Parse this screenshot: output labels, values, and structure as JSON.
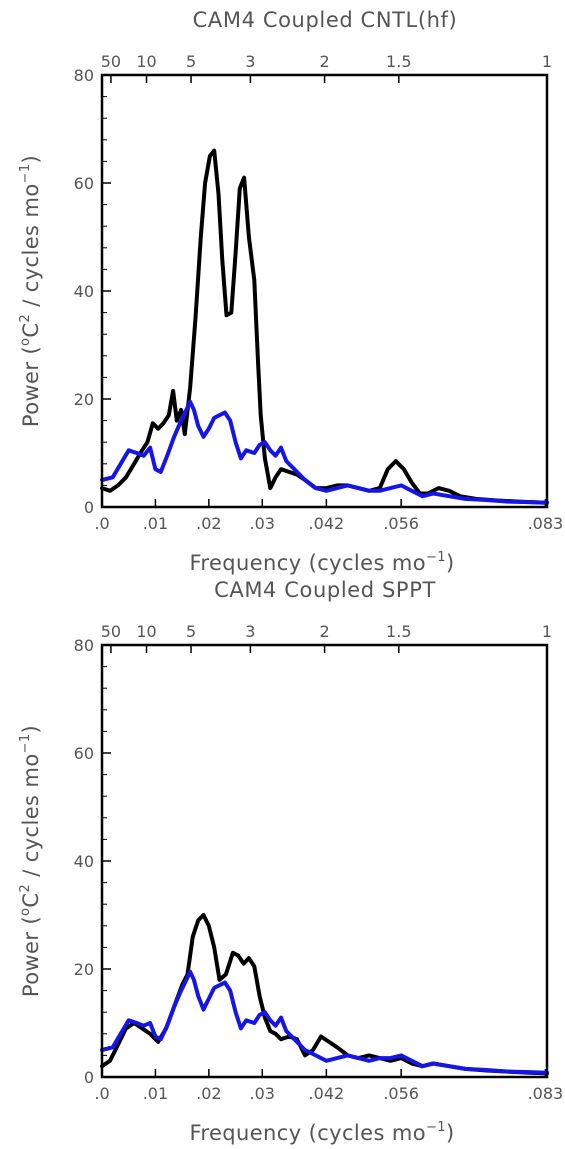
{
  "colors": {
    "cntl": "#000000",
    "stochastic": "#1515e8",
    "frame": "#000000",
    "text": "#555555"
  },
  "panels": [
    {
      "title": "CAM4 Coupled CNTL(hf)",
      "xlabel_main": "Frequency (cycles mo",
      "xlabel_exp": "−1",
      "xlabel_end": ")",
      "ylabel_main": "Power (",
      "ylabel_o": "o",
      "ylabel_c": "C",
      "ylabel_2": "2",
      "ylabel_mid": " / cycles mo",
      "ylabel_exp": "−1",
      "ylabel_end": ")"
    },
    {
      "title": "CAM4 Coupled SPPT",
      "xlabel_main": "Frequency (cycles mo",
      "xlabel_exp": "−1",
      "xlabel_end": ")",
      "ylabel_main": "Power (",
      "ylabel_o": "o",
      "ylabel_c": "C",
      "ylabel_2": "2",
      "ylabel_mid": " / cycles mo",
      "ylabel_exp": "−1",
      "ylabel_end": ")"
    }
  ],
  "chart_data": [
    {
      "type": "line",
      "title": "CAM4 Coupled CNTL(hf)",
      "xlabel": "Frequency (cycles mo−1)",
      "ylabel": "Power (oC2 / cycles mo−1)",
      "xlim": [
        0,
        0.0833
      ],
      "ylim": [
        0,
        80
      ],
      "x_ticks": [
        0,
        0.01,
        0.02,
        0.03,
        0.042,
        0.056,
        0.083
      ],
      "x_tick_labels": [
        ".0",
        ".01",
        ".02",
        ".03",
        ".042",
        ".056",
        ".083"
      ],
      "y_ticks": [
        0,
        20,
        40,
        60,
        80
      ],
      "y_tick_labels": [
        "0",
        "20",
        "40",
        "60",
        "80"
      ],
      "top_axis_label": "",
      "top_ticks": [
        {
          "period": 50,
          "label": "50"
        },
        {
          "period": 10,
          "label": "10"
        },
        {
          "period": 5,
          "label": "5"
        },
        {
          "period": 3,
          "label": "3"
        },
        {
          "period": 2,
          "label": "2"
        },
        {
          "period": 1.5,
          "label": "1.5"
        },
        {
          "period": 1,
          "label": "1"
        }
      ],
      "series": [
        {
          "color": "#000000",
          "points": [
            [
              0,
              3.5
            ],
            [
              0.0015,
              3.0
            ],
            [
              0.003,
              4.0
            ],
            [
              0.0045,
              5.5
            ],
            [
              0.006,
              8.0
            ],
            [
              0.0075,
              10.5
            ],
            [
              0.0085,
              12.0
            ],
            [
              0.0095,
              15.5
            ],
            [
              0.0105,
              14.5
            ],
            [
              0.0115,
              15.5
            ],
            [
              0.0125,
              17.0
            ],
            [
              0.0133,
              21.5
            ],
            [
              0.014,
              16.0
            ],
            [
              0.0148,
              18.0
            ],
            [
              0.0155,
              13.5
            ],
            [
              0.0165,
              22.0
            ],
            [
              0.0175,
              35.0
            ],
            [
              0.0185,
              50.0
            ],
            [
              0.0193,
              60.0
            ],
            [
              0.0202,
              65.0
            ],
            [
              0.021,
              66.0
            ],
            [
              0.0218,
              58.0
            ],
            [
              0.0225,
              46.0
            ],
            [
              0.0233,
              35.5
            ],
            [
              0.0242,
              36.0
            ],
            [
              0.025,
              47.0
            ],
            [
              0.0258,
              59.0
            ],
            [
              0.0266,
              61.0
            ],
            [
              0.0275,
              50.0
            ],
            [
              0.0285,
              42.0
            ],
            [
              0.0292,
              27.0
            ],
            [
              0.0297,
              17.0
            ],
            [
              0.0305,
              9.0
            ],
            [
              0.0315,
              3.5
            ],
            [
              0.0325,
              5.5
            ],
            [
              0.0335,
              7.0
            ],
            [
              0.035,
              6.5
            ],
            [
              0.0365,
              6.0
            ],
            [
              0.038,
              5.0
            ],
            [
              0.04,
              3.5
            ],
            [
              0.042,
              3.5
            ],
            [
              0.044,
              4.0
            ],
            [
              0.046,
              4.0
            ],
            [
              0.048,
              3.5
            ],
            [
              0.05,
              3.0
            ],
            [
              0.052,
              3.5
            ],
            [
              0.0535,
              7.0
            ],
            [
              0.055,
              8.5
            ],
            [
              0.0565,
              7.0
            ],
            [
              0.058,
              4.5
            ],
            [
              0.0595,
              2.5
            ],
            [
              0.061,
              2.5
            ],
            [
              0.063,
              3.5
            ],
            [
              0.065,
              3.0
            ],
            [
              0.067,
              2.0
            ],
            [
              0.07,
              1.5
            ],
            [
              0.074,
              1.2
            ],
            [
              0.078,
              1.0
            ],
            [
              0.0833,
              0.8
            ]
          ]
        },
        {
          "color": "#1515e8",
          "points": [
            [
              0,
              5.0
            ],
            [
              0.002,
              5.5
            ],
            [
              0.0035,
              8.0
            ],
            [
              0.005,
              10.5
            ],
            [
              0.0065,
              10.0
            ],
            [
              0.0078,
              9.5
            ],
            [
              0.009,
              11.0
            ],
            [
              0.01,
              7.0
            ],
            [
              0.011,
              6.5
            ],
            [
              0.0122,
              9.5
            ],
            [
              0.0135,
              13.0
            ],
            [
              0.0148,
              16.0
            ],
            [
              0.0158,
              18.0
            ],
            [
              0.0165,
              19.5
            ],
            [
              0.0172,
              18.0
            ],
            [
              0.018,
              15.0
            ],
            [
              0.019,
              13.0
            ],
            [
              0.02,
              14.5
            ],
            [
              0.021,
              16.5
            ],
            [
              0.022,
              17.0
            ],
            [
              0.023,
              17.5
            ],
            [
              0.024,
              16.0
            ],
            [
              0.025,
              12.0
            ],
            [
              0.026,
              9.0
            ],
            [
              0.027,
              10.5
            ],
            [
              0.0285,
              10.0
            ],
            [
              0.0295,
              11.5
            ],
            [
              0.0305,
              12.0
            ],
            [
              0.0315,
              10.5
            ],
            [
              0.0325,
              9.5
            ],
            [
              0.0335,
              11.0
            ],
            [
              0.0345,
              8.5
            ],
            [
              0.036,
              7.0
            ],
            [
              0.038,
              5.0
            ],
            [
              0.04,
              3.5
            ],
            [
              0.042,
              3.0
            ],
            [
              0.044,
              3.5
            ],
            [
              0.046,
              4.0
            ],
            [
              0.048,
              3.5
            ],
            [
              0.05,
              3.0
            ],
            [
              0.052,
              3.0
            ],
            [
              0.054,
              3.5
            ],
            [
              0.056,
              4.0
            ],
            [
              0.058,
              3.0
            ],
            [
              0.06,
              2.0
            ],
            [
              0.062,
              2.5
            ],
            [
              0.065,
              2.0
            ],
            [
              0.068,
              1.5
            ],
            [
              0.072,
              1.3
            ],
            [
              0.076,
              1.0
            ],
            [
              0.08,
              0.9
            ],
            [
              0.0833,
              0.8
            ]
          ]
        }
      ]
    },
    {
      "type": "line",
      "title": "CAM4 Coupled SPPT",
      "xlabel": "Frequency (cycles mo−1)",
      "ylabel": "Power (oC2 / cycles mo−1)",
      "xlim": [
        0,
        0.0833
      ],
      "ylim": [
        0,
        80
      ],
      "x_ticks": [
        0,
        0.01,
        0.02,
        0.03,
        0.042,
        0.056,
        0.083
      ],
      "x_tick_labels": [
        ".0",
        ".01",
        ".02",
        ".03",
        ".042",
        ".056",
        ".083"
      ],
      "y_ticks": [
        0,
        20,
        40,
        60,
        80
      ],
      "y_tick_labels": [
        "0",
        "20",
        "40",
        "60",
        "80"
      ],
      "top_ticks": [
        {
          "period": 50,
          "label": "50"
        },
        {
          "period": 10,
          "label": "10"
        },
        {
          "period": 5,
          "label": "5"
        },
        {
          "period": 3,
          "label": "3"
        },
        {
          "period": 2,
          "label": "2"
        },
        {
          "period": 1.5,
          "label": "1.5"
        },
        {
          "period": 1,
          "label": "1"
        }
      ],
      "series": [
        {
          "color": "#000000",
          "points": [
            [
              0,
              2.0
            ],
            [
              0.0015,
              3.0
            ],
            [
              0.003,
              6.0
            ],
            [
              0.0045,
              9.0
            ],
            [
              0.006,
              10.0
            ],
            [
              0.0075,
              9.0
            ],
            [
              0.009,
              8.0
            ],
            [
              0.0105,
              6.5
            ],
            [
              0.012,
              9.0
            ],
            [
              0.0135,
              13.0
            ],
            [
              0.015,
              17.0
            ],
            [
              0.016,
              19.0
            ],
            [
              0.017,
              26.0
            ],
            [
              0.018,
              29.0
            ],
            [
              0.019,
              30.0
            ],
            [
              0.02,
              28.0
            ],
            [
              0.021,
              24.0
            ],
            [
              0.022,
              18.0
            ],
            [
              0.0232,
              19.0
            ],
            [
              0.0245,
              23.0
            ],
            [
              0.0255,
              22.5
            ],
            [
              0.0265,
              21.0
            ],
            [
              0.0275,
              22.0
            ],
            [
              0.0285,
              20.5
            ],
            [
              0.0295,
              15.0
            ],
            [
              0.0305,
              11.0
            ],
            [
              0.0315,
              8.5
            ],
            [
              0.0325,
              8.0
            ],
            [
              0.0335,
              7.0
            ],
            [
              0.035,
              7.5
            ],
            [
              0.0365,
              7.0
            ],
            [
              0.038,
              4.0
            ],
            [
              0.0395,
              5.0
            ],
            [
              0.041,
              7.5
            ],
            [
              0.0425,
              6.5
            ],
            [
              0.044,
              5.5
            ],
            [
              0.046,
              4.0
            ],
            [
              0.048,
              3.5
            ],
            [
              0.05,
              4.0
            ],
            [
              0.052,
              3.5
            ],
            [
              0.054,
              3.0
            ],
            [
              0.056,
              3.5
            ],
            [
              0.058,
              2.5
            ],
            [
              0.06,
              2.0
            ],
            [
              0.062,
              2.5
            ],
            [
              0.065,
              2.0
            ],
            [
              0.068,
              1.5
            ],
            [
              0.072,
              1.2
            ],
            [
              0.076,
              1.0
            ],
            [
              0.08,
              0.8
            ],
            [
              0.0833,
              0.7
            ]
          ]
        },
        {
          "color": "#1515e8",
          "points": [
            [
              0,
              5.0
            ],
            [
              0.002,
              5.5
            ],
            [
              0.0035,
              8.0
            ],
            [
              0.005,
              10.5
            ],
            [
              0.0065,
              10.0
            ],
            [
              0.0078,
              9.5
            ],
            [
              0.009,
              10.0
            ],
            [
              0.01,
              7.5
            ],
            [
              0.011,
              7.0
            ],
            [
              0.0122,
              9.5
            ],
            [
              0.0135,
              13.0
            ],
            [
              0.0148,
              16.0
            ],
            [
              0.0158,
              18.0
            ],
            [
              0.0165,
              19.5
            ],
            [
              0.0172,
              18.0
            ],
            [
              0.018,
              15.0
            ],
            [
              0.019,
              12.5
            ],
            [
              0.02,
              14.5
            ],
            [
              0.021,
              16.5
            ],
            [
              0.022,
              17.0
            ],
            [
              0.023,
              17.5
            ],
            [
              0.024,
              16.0
            ],
            [
              0.025,
              12.0
            ],
            [
              0.026,
              9.0
            ],
            [
              0.027,
              10.5
            ],
            [
              0.0285,
              10.0
            ],
            [
              0.0295,
              11.5
            ],
            [
              0.0305,
              12.0
            ],
            [
              0.0315,
              10.5
            ],
            [
              0.0325,
              9.5
            ],
            [
              0.0335,
              11.0
            ],
            [
              0.0345,
              8.5
            ],
            [
              0.036,
              7.0
            ],
            [
              0.038,
              5.0
            ],
            [
              0.04,
              4.0
            ],
            [
              0.042,
              3.0
            ],
            [
              0.044,
              3.5
            ],
            [
              0.046,
              4.0
            ],
            [
              0.048,
              3.5
            ],
            [
              0.05,
              3.0
            ],
            [
              0.052,
              3.5
            ],
            [
              0.054,
              3.5
            ],
            [
              0.056,
              4.0
            ],
            [
              0.058,
              3.0
            ],
            [
              0.06,
              2.0
            ],
            [
              0.062,
              2.5
            ],
            [
              0.065,
              2.0
            ],
            [
              0.068,
              1.5
            ],
            [
              0.072,
              1.3
            ],
            [
              0.076,
              1.0
            ],
            [
              0.08,
              0.9
            ],
            [
              0.0833,
              0.8
            ]
          ]
        }
      ]
    }
  ]
}
